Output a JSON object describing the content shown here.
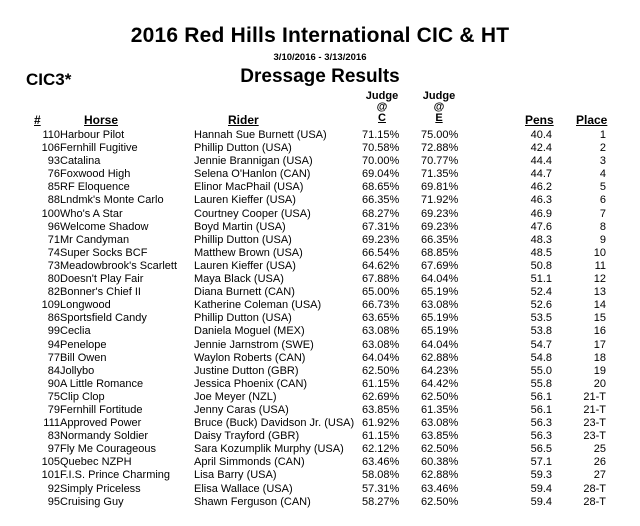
{
  "event": {
    "title": "2016 Red Hills International CIC & HT",
    "dates": "3/10/2016 - 3/13/2016",
    "level": "CIC3*",
    "subtitle": "Dressage Results"
  },
  "columns": {
    "num": "#",
    "horse": "Horse",
    "rider": "Rider",
    "judge_c": [
      "Judge",
      "@",
      "C"
    ],
    "judge_e": [
      "Judge",
      "@",
      "E"
    ],
    "pens": "Pens",
    "place": "Place"
  },
  "rows": [
    {
      "num": "110",
      "horse": "Harbour Pilot",
      "rider": "Hannah Sue Burnett (USA)",
      "jc": "71.15%",
      "je": "75.00%",
      "pens": "40.4",
      "place": "1"
    },
    {
      "num": "106",
      "horse": "Fernhill Fugitive",
      "rider": "Phillip Dutton (USA)",
      "jc": "70.58%",
      "je": "72.88%",
      "pens": "42.4",
      "place": "2"
    },
    {
      "num": "93",
      "horse": "Catalina",
      "rider": "Jennie Brannigan (USA)",
      "jc": "70.00%",
      "je": "70.77%",
      "pens": "44.4",
      "place": "3"
    },
    {
      "num": "76",
      "horse": "Foxwood High",
      "rider": "Selena  O'Hanlon (CAN)",
      "jc": "69.04%",
      "je": "71.35%",
      "pens": "44.7",
      "place": "4"
    },
    {
      "num": "85",
      "horse": "RF Eloquence",
      "rider": "Elinor MacPhail (USA)",
      "jc": "68.65%",
      "je": "69.81%",
      "pens": "46.2",
      "place": "5"
    },
    {
      "num": "88",
      "horse": "Lndmk's Monte Carlo",
      "rider": "Lauren Kieffer (USA)",
      "jc": "66.35%",
      "je": "71.92%",
      "pens": "46.3",
      "place": "6"
    },
    {
      "num": "100",
      "horse": "Who's A Star",
      "rider": "Courtney Cooper (USA)",
      "jc": "68.27%",
      "je": "69.23%",
      "pens": "46.9",
      "place": "7"
    },
    {
      "num": "96",
      "horse": "Welcome Shadow",
      "rider": "Boyd Martin (USA)",
      "jc": "67.31%",
      "je": "69.23%",
      "pens": "47.6",
      "place": "8"
    },
    {
      "num": "71",
      "horse": "Mr Candyman",
      "rider": "Phillip Dutton (USA)",
      "jc": "69.23%",
      "je": "66.35%",
      "pens": "48.3",
      "place": "9"
    },
    {
      "num": "74",
      "horse": "Super Socks BCF",
      "rider": "Matthew Brown (USA)",
      "jc": "66.54%",
      "je": "68.85%",
      "pens": "48.5",
      "place": "10"
    },
    {
      "num": "73",
      "horse": "Meadowbrook's Scarlett",
      "rider": "Lauren Kieffer (USA)",
      "jc": "64.62%",
      "je": "67.69%",
      "pens": "50.8",
      "place": "11"
    },
    {
      "num": "80",
      "horse": "Doesn't Play Fair",
      "rider": "Maya Black (USA)",
      "jc": "67.88%",
      "je": "64.04%",
      "pens": "51.1",
      "place": "12"
    },
    {
      "num": "82",
      "horse": "Bonner's Chief II",
      "rider": "Diana Burnett (CAN)",
      "jc": "65.00%",
      "je": "65.19%",
      "pens": "52.4",
      "place": "13"
    },
    {
      "num": "109",
      "horse": "Longwood",
      "rider": "Katherine Coleman (USA)",
      "jc": "66.73%",
      "je": "63.08%",
      "pens": "52.6",
      "place": "14"
    },
    {
      "num": "86",
      "horse": "Sportsfield Candy",
      "rider": "Phillip Dutton (USA)",
      "jc": "63.65%",
      "je": "65.19%",
      "pens": "53.5",
      "place": "15"
    },
    {
      "num": "99",
      "horse": "Ceclia",
      "rider": "Daniela Moguel (MEX)",
      "jc": "63.08%",
      "je": "65.19%",
      "pens": "53.8",
      "place": "16"
    },
    {
      "num": "94",
      "horse": "Penelope",
      "rider": "Jennie Jarnstrom (SWE)",
      "jc": "63.08%",
      "je": "64.04%",
      "pens": "54.7",
      "place": "17"
    },
    {
      "num": "77",
      "horse": "Bill Owen",
      "rider": "Waylon Roberts (CAN)",
      "jc": "64.04%",
      "je": "62.88%",
      "pens": "54.8",
      "place": "18"
    },
    {
      "num": "84",
      "horse": "Jollybo",
      "rider": "Justine Dutton (GBR)",
      "jc": "62.50%",
      "je": "64.23%",
      "pens": "55.0",
      "place": "19"
    },
    {
      "num": "90",
      "horse": "A Little Romance",
      "rider": "Jessica  Phoenix (CAN)",
      "jc": "61.15%",
      "je": "64.42%",
      "pens": "55.8",
      "place": "20"
    },
    {
      "num": "75",
      "horse": "Clip Clop",
      "rider": "Joe Meyer (NZL)",
      "jc": "62.69%",
      "je": "62.50%",
      "pens": "56.1",
      "place": "21-T"
    },
    {
      "num": "79",
      "horse": "Fernhill Fortitude",
      "rider": "Jenny Caras (USA)",
      "jc": "63.85%",
      "je": "61.35%",
      "pens": "56.1",
      "place": "21-T"
    },
    {
      "num": "111",
      "horse": "Approved Power",
      "rider": "Bruce (Buck) Davidson Jr. (USA)",
      "jc": "61.92%",
      "je": "63.08%",
      "pens": "56.3",
      "place": "23-T"
    },
    {
      "num": "83",
      "horse": "Normandy Soldier",
      "rider": "Daisy Trayford (GBR)",
      "jc": "61.15%",
      "je": "63.85%",
      "pens": "56.3",
      "place": "23-T"
    },
    {
      "num": "97",
      "horse": "Fly Me Courageous",
      "rider": "Sara Kozumplik Murphy (USA)",
      "jc": "62.12%",
      "je": "62.50%",
      "pens": "56.5",
      "place": "25"
    },
    {
      "num": "105",
      "horse": "Quebec NZPH",
      "rider": "April Simmonds (CAN)",
      "jc": "63.46%",
      "je": "60.38%",
      "pens": "57.1",
      "place": "26"
    },
    {
      "num": "101",
      "horse": "F.I.S. Prince Charming",
      "rider": "Lisa Barry (USA)",
      "jc": "58.08%",
      "je": "62.88%",
      "pens": "59.3",
      "place": "27"
    },
    {
      "num": "92",
      "horse": "Simply Priceless",
      "rider": "Elisa Wallace (USA)",
      "jc": "57.31%",
      "je": "63.46%",
      "pens": "59.4",
      "place": "28-T"
    },
    {
      "num": "95",
      "horse": "Cruising Guy",
      "rider": "Shawn Ferguson (CAN)",
      "jc": "58.27%",
      "je": "62.50%",
      "pens": "59.4",
      "place": "28-T"
    }
  ]
}
